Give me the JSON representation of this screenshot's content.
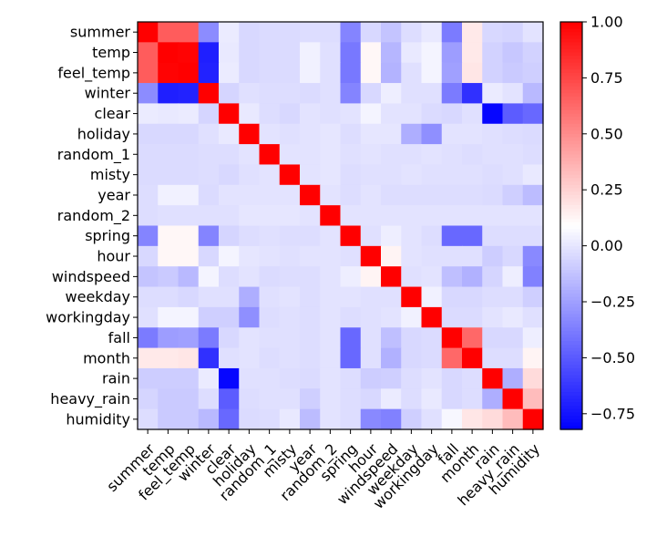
{
  "chart_data": {
    "type": "heatmap",
    "title": "",
    "xlabel": "",
    "ylabel": "",
    "labels": [
      "summer",
      "temp",
      "feel_temp",
      "winter",
      "clear",
      "holiday",
      "random_1",
      "misty",
      "year",
      "random_2",
      "spring",
      "hour",
      "windspeed",
      "weekday",
      "workingday",
      "fall",
      "month",
      "rain",
      "heavy_rain",
      "humidity"
    ],
    "matrix": [
      [
        1.0,
        0.67,
        0.67,
        -0.32,
        0.02,
        -0.05,
        -0.04,
        -0.04,
        -0.03,
        -0.03,
        -0.35,
        -0.05,
        -0.12,
        -0.03,
        0.01,
        -0.38,
        0.17,
        -0.05,
        -0.06,
        -0.01
      ],
      [
        0.67,
        1.0,
        0.99,
        -0.71,
        0.01,
        -0.05,
        -0.04,
        -0.04,
        0.04,
        -0.02,
        -0.39,
        0.12,
        -0.17,
        0.01,
        0.05,
        -0.26,
        0.17,
        -0.07,
        -0.11,
        -0.07
      ],
      [
        0.67,
        0.99,
        1.0,
        -0.7,
        0.02,
        -0.05,
        -0.04,
        -0.04,
        0.04,
        -0.02,
        -0.39,
        0.12,
        -0.18,
        -0.02,
        0.05,
        -0.25,
        0.18,
        -0.07,
        -0.1,
        -0.08
      ],
      [
        -0.32,
        -0.71,
        -0.7,
        1.0,
        -0.06,
        -0.02,
        -0.03,
        -0.03,
        -0.04,
        -0.02,
        -0.35,
        -0.05,
        0.03,
        -0.02,
        -0.02,
        -0.38,
        -0.65,
        0.02,
        -0.01,
        -0.16
      ],
      [
        0.02,
        0.01,
        0.02,
        -0.06,
        1.0,
        0.01,
        -0.03,
        -0.05,
        -0.01,
        -0.02,
        -0.01,
        0.05,
        -0.01,
        -0.01,
        -0.04,
        -0.05,
        -0.02,
        -0.8,
        -0.49,
        -0.45
      ],
      [
        -0.05,
        -0.05,
        -0.05,
        -0.02,
        0.01,
        1.0,
        -0.01,
        -0.02,
        -0.01,
        0.0,
        -0.03,
        0.0,
        0.0,
        -0.2,
        -0.31,
        -0.01,
        -0.01,
        -0.02,
        -0.03,
        -0.04
      ],
      [
        -0.04,
        -0.04,
        -0.04,
        -0.03,
        -0.03,
        -0.01,
        1.0,
        -0.01,
        -0.01,
        0.0,
        -0.02,
        -0.01,
        -0.02,
        -0.02,
        -0.01,
        -0.02,
        -0.03,
        -0.02,
        -0.02,
        -0.03
      ],
      [
        -0.04,
        -0.04,
        -0.04,
        -0.03,
        -0.05,
        -0.02,
        -0.01,
        1.0,
        -0.01,
        0.0,
        -0.03,
        -0.02,
        -0.02,
        -0.01,
        -0.02,
        -0.02,
        -0.02,
        -0.03,
        -0.02,
        0.01
      ],
      [
        -0.03,
        0.04,
        0.04,
        -0.04,
        -0.01,
        -0.01,
        -0.01,
        -0.01,
        1.0,
        -0.01,
        -0.03,
        -0.01,
        -0.03,
        -0.03,
        -0.03,
        -0.03,
        -0.03,
        -0.04,
        -0.08,
        -0.15
      ],
      [
        -0.03,
        -0.02,
        -0.02,
        -0.02,
        -0.02,
        0.0,
        0.0,
        0.0,
        -0.01,
        1.0,
        -0.01,
        -0.01,
        -0.01,
        -0.01,
        -0.01,
        -0.01,
        -0.01,
        -0.01,
        -0.01,
        -0.01
      ],
      [
        -0.35,
        0.12,
        0.12,
        -0.35,
        -0.06,
        -0.03,
        -0.02,
        -0.03,
        -0.03,
        -0.01,
        1.0,
        -0.02,
        0.03,
        -0.01,
        -0.03,
        -0.45,
        -0.45,
        -0.03,
        -0.03,
        -0.03
      ],
      [
        -0.05,
        0.12,
        0.12,
        -0.05,
        0.05,
        0.0,
        -0.01,
        -0.02,
        -0.01,
        -0.01,
        -0.02,
        1.0,
        0.13,
        -0.01,
        -0.02,
        -0.02,
        -0.02,
        -0.09,
        -0.05,
        -0.33
      ],
      [
        -0.12,
        -0.1,
        -0.16,
        0.05,
        -0.03,
        -0.01,
        -0.04,
        -0.03,
        -0.03,
        -0.01,
        0.03,
        0.13,
        1.0,
        -0.02,
        -0.01,
        -0.14,
        -0.19,
        -0.06,
        0.03,
        -0.36
      ],
      [
        -0.03,
        -0.03,
        -0.05,
        -0.02,
        -0.02,
        -0.2,
        -0.02,
        -0.01,
        -0.03,
        -0.01,
        -0.01,
        -0.02,
        -0.02,
        1.0,
        0.04,
        -0.05,
        -0.05,
        -0.03,
        -0.03,
        -0.08
      ],
      [
        -0.02,
        0.05,
        0.05,
        -0.08,
        -0.08,
        -0.31,
        -0.03,
        -0.02,
        -0.03,
        -0.01,
        -0.03,
        -0.02,
        -0.01,
        0.04,
        1.0,
        -0.04,
        -0.04,
        -0.01,
        0.01,
        -0.02
      ],
      [
        -0.38,
        -0.26,
        -0.25,
        -0.38,
        -0.05,
        -0.01,
        -0.02,
        -0.02,
        -0.03,
        -0.01,
        -0.45,
        -0.02,
        -0.14,
        -0.05,
        -0.04,
        1.0,
        0.63,
        -0.05,
        -0.05,
        0.03
      ],
      [
        0.17,
        0.17,
        0.18,
        -0.65,
        -0.02,
        -0.01,
        -0.03,
        -0.02,
        -0.03,
        -0.01,
        -0.45,
        -0.02,
        -0.19,
        -0.05,
        -0.04,
        0.63,
        1.0,
        -0.03,
        -0.03,
        0.13
      ],
      [
        -0.09,
        -0.09,
        -0.09,
        0.02,
        -0.8,
        -0.02,
        -0.02,
        -0.03,
        -0.04,
        -0.01,
        -0.03,
        -0.09,
        -0.08,
        -0.03,
        -0.01,
        -0.05,
        -0.03,
        1.0,
        -0.2,
        0.22
      ],
      [
        -0.06,
        -0.1,
        -0.1,
        -0.03,
        -0.49,
        -0.03,
        -0.02,
        -0.02,
        -0.08,
        -0.01,
        -0.03,
        -0.05,
        0.02,
        -0.03,
        0.01,
        -0.05,
        -0.03,
        -0.2,
        1.0,
        0.33
      ],
      [
        -0.03,
        -0.1,
        -0.1,
        -0.16,
        -0.45,
        -0.04,
        -0.03,
        0.01,
        -0.15,
        -0.01,
        -0.03,
        -0.33,
        -0.36,
        -0.08,
        -0.02,
        0.06,
        0.18,
        0.22,
        0.33,
        1.0
      ]
    ],
    "vmin": -0.82,
    "vmax": 1.0,
    "colormap": "bwr",
    "colors": {
      "low": "#0000ff",
      "mid": "#ffffff",
      "high": "#ff0000"
    },
    "colorbar_ticks": [
      1.0,
      0.75,
      0.5,
      0.25,
      0.0,
      -0.25,
      -0.5,
      -0.75
    ],
    "colorbar_tick_labels": [
      "1.00",
      "0.75",
      "0.50",
      "0.25",
      "0.00",
      "−0.25",
      "−0.50",
      "−0.75"
    ],
    "grid": false,
    "legend": "colorbar-right"
  }
}
